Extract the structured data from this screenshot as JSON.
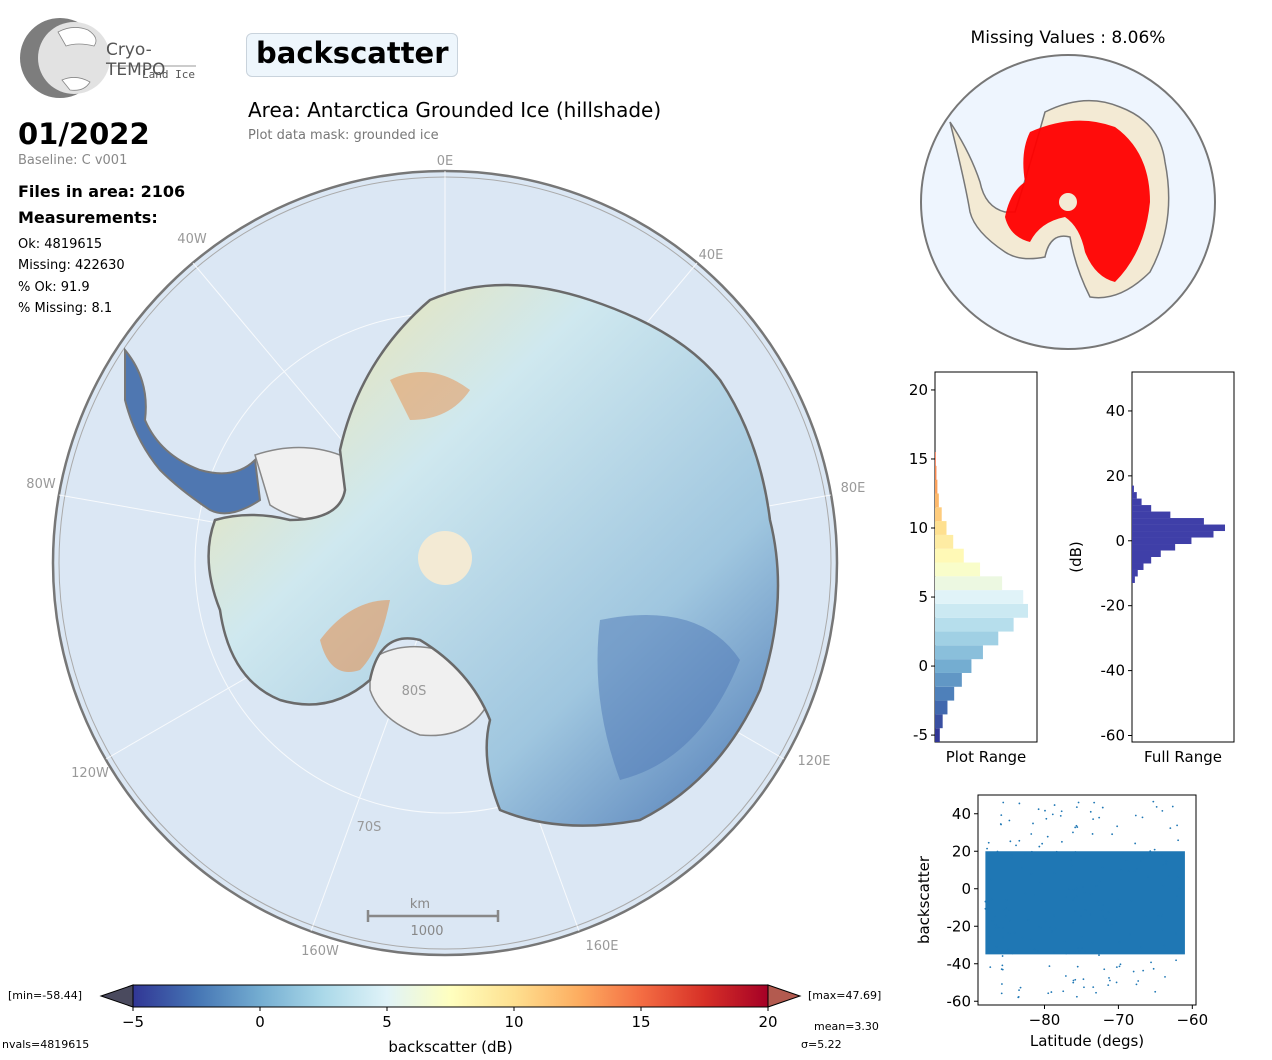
{
  "header": {
    "logo_name": "Cryo-TEMPO",
    "logo_sub": "Land Ice",
    "parameter": "backscatter",
    "area_title": "Area: Antarctica Grounded Ice (hillshade)",
    "mask_note": "Plot data mask: grounded ice"
  },
  "info": {
    "date": "01/2022",
    "baseline": "Baseline: C v001",
    "files": "Files in area: 2106",
    "measurements_label": "Measurements:",
    "ok": "Ok: 4819615",
    "missing": "Missing: 422630",
    "pct_ok": "% Ok: 91.9",
    "pct_missing": "% Missing: 8.1"
  },
  "map": {
    "meridian_labels": [
      "0E",
      "40E",
      "80E",
      "120E",
      "160E",
      "160W",
      "120W",
      "80W",
      "40W"
    ],
    "lat_labels": [
      "80S",
      "70S"
    ],
    "scale_unit": "km",
    "scale_value": "1000",
    "colors": {
      "ocean": "#dbe7f4",
      "ice_shelf": "#efefef",
      "pole_hole": "#f3ead4",
      "low": "#313695",
      "high": "#a50026"
    }
  },
  "missing_panel": {
    "title": "Missing Values : 8.06%",
    "missing_color": "#ff0000",
    "valid_color": "#f3ead4"
  },
  "chart_data": [
    {
      "type": "bar",
      "name": "Plot Range histogram",
      "xlabel": "Plot Range",
      "ylim": [
        -5.5,
        21.3
      ],
      "yticks": [
        -5,
        0,
        5,
        10,
        15,
        20
      ],
      "bin_centers": [
        -5,
        -4,
        -3,
        -2,
        -1,
        0,
        1,
        2,
        3,
        4,
        5,
        6,
        7,
        8,
        9,
        10,
        11,
        12,
        13,
        14,
        15
      ],
      "values": [
        0.05,
        0.08,
        0.13,
        0.2,
        0.28,
        0.38,
        0.5,
        0.66,
        0.82,
        0.97,
        0.92,
        0.7,
        0.47,
        0.3,
        0.19,
        0.12,
        0.07,
        0.04,
        0.025,
        0.015,
        0.008
      ]
    },
    {
      "type": "bar",
      "name": "Full Range histogram",
      "xlabel": "Full Range",
      "ylabel": "(dB)",
      "ylim": [
        -62,
        52
      ],
      "yticks": [
        -60,
        -40,
        -20,
        0,
        20,
        40
      ],
      "bin_centers": [
        -12,
        -10,
        -8,
        -6,
        -4,
        -2,
        0,
        2,
        4,
        6,
        8,
        10,
        12,
        14,
        16
      ],
      "values": [
        0.03,
        0.06,
        0.12,
        0.2,
        0.3,
        0.45,
        0.62,
        0.85,
        0.97,
        0.75,
        0.4,
        0.2,
        0.1,
        0.05,
        0.02
      ]
    },
    {
      "type": "scatter",
      "name": "backscatter vs latitude",
      "xlabel": "Latitude (degs)",
      "ylabel": "backscatter",
      "xlim": [
        -89,
        -59.5
      ],
      "ylim": [
        -62,
        50
      ],
      "xticks": [
        -80,
        -70,
        -60
      ],
      "yticks": [
        -60,
        -40,
        -20,
        0,
        20,
        40
      ],
      "x_range": [
        -88,
        -61
      ],
      "y_range": [
        -58,
        47
      ]
    },
    {
      "type": "colorbar",
      "label": "backscatter (dB)",
      "range": [
        -5,
        20
      ],
      "ticks": [
        -5,
        0,
        5,
        10,
        15,
        20
      ],
      "min_label": "[min=-58.44]",
      "max_label": "[max=47.69]",
      "mean_label": "mean=3.30",
      "sigma_label": "σ=5.22",
      "nvals_label": "nvals=4819615"
    }
  ]
}
